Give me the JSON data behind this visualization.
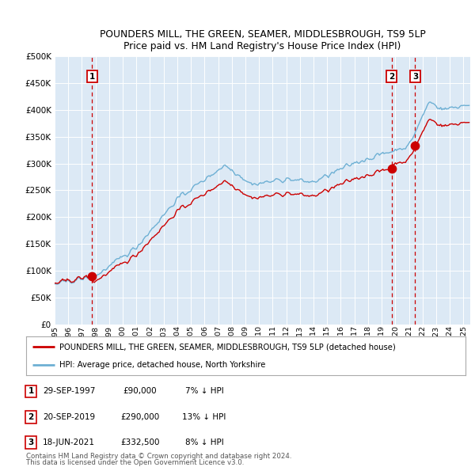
{
  "title1": "POUNDERS MILL, THE GREEN, SEAMER, MIDDLESBROUGH, TS9 5LP",
  "title2": "Price paid vs. HM Land Registry's House Price Index (HPI)",
  "plot_bg_color": "#dce9f5",
  "ylim": [
    0,
    500000
  ],
  "yticks": [
    0,
    50000,
    100000,
    150000,
    200000,
    250000,
    300000,
    350000,
    400000,
    450000,
    500000
  ],
  "legend_label_red": "POUNDERS MILL, THE GREEN, SEAMER, MIDDLESBROUGH, TS9 5LP (detached house)",
  "legend_label_blue": "HPI: Average price, detached house, North Yorkshire",
  "sale_points": [
    {
      "date_num": 1997.75,
      "price": 90000,
      "label": "1"
    },
    {
      "date_num": 2019.72,
      "price": 290000,
      "label": "2"
    },
    {
      "date_num": 2021.46,
      "price": 332500,
      "label": "3"
    }
  ],
  "table_rows": [
    {
      "num": "1",
      "date": "29-SEP-1997",
      "price": "£90,000",
      "hpi": "7% ↓ HPI"
    },
    {
      "num": "2",
      "date": "20-SEP-2019",
      "price": "£290,000",
      "hpi": "13% ↓ HPI"
    },
    {
      "num": "3",
      "date": "18-JUN-2021",
      "price": "£332,500",
      "hpi": "8% ↓ HPI"
    }
  ],
  "footnote1": "Contains HM Land Registry data © Crown copyright and database right 2024.",
  "footnote2": "This data is licensed under the Open Government Licence v3.0.",
  "red_line_color": "#cc0000",
  "blue_line_color": "#6eb0d4",
  "dashed_vline_color": "#cc0000",
  "grid_color": "#ffffff"
}
